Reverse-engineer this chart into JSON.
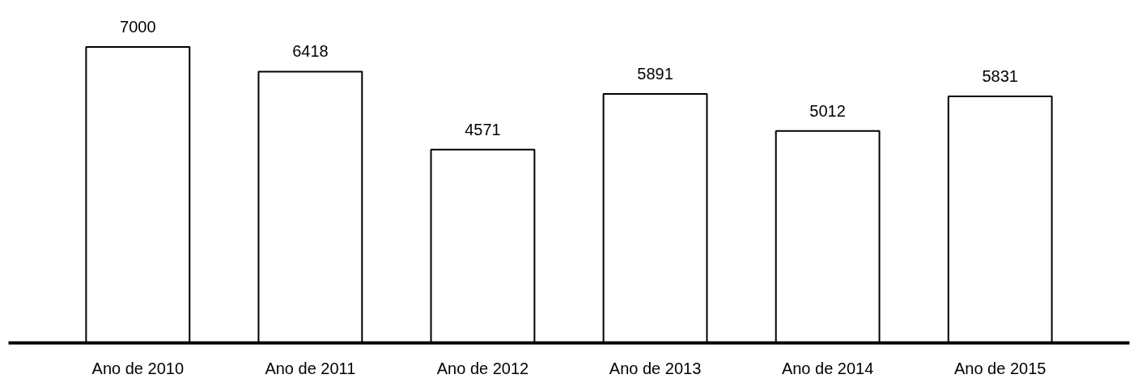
{
  "chart_data": {
    "type": "bar",
    "categories": [
      "Ano de 2010",
      "Ano de 2011",
      "Ano de 2012",
      "Ano de 2013",
      "Ano de 2014",
      "Ano de 2015"
    ],
    "values": [
      7000,
      6418,
      4571,
      5891,
      5012,
      5831
    ],
    "color": "#ffffff",
    "data_labels": true
  }
}
